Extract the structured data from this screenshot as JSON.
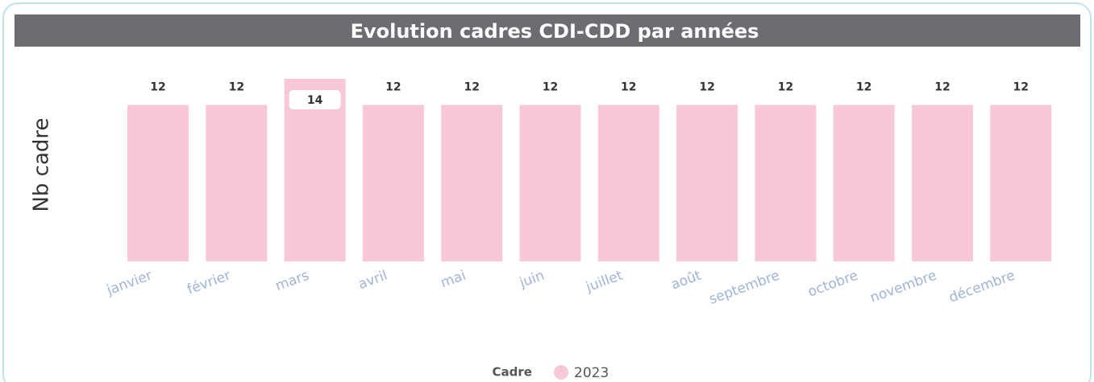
{
  "chart_data": {
    "type": "bar",
    "title": "Evolution cadres CDI-CDD par années",
    "y_label": "Nb cadre",
    "legend_title": "Cadre",
    "categories": [
      "janvier",
      "février",
      "mars",
      "avril",
      "mai",
      "juin",
      "juillet",
      "août",
      "septembre",
      "octobre",
      "novembre",
      "décembre"
    ],
    "series": [
      {
        "name": "2023",
        "color": "#f8c8d6",
        "values": [
          12,
          12,
          14,
          12,
          12,
          12,
          12,
          12,
          12,
          12,
          12,
          12
        ]
      }
    ]
  }
}
